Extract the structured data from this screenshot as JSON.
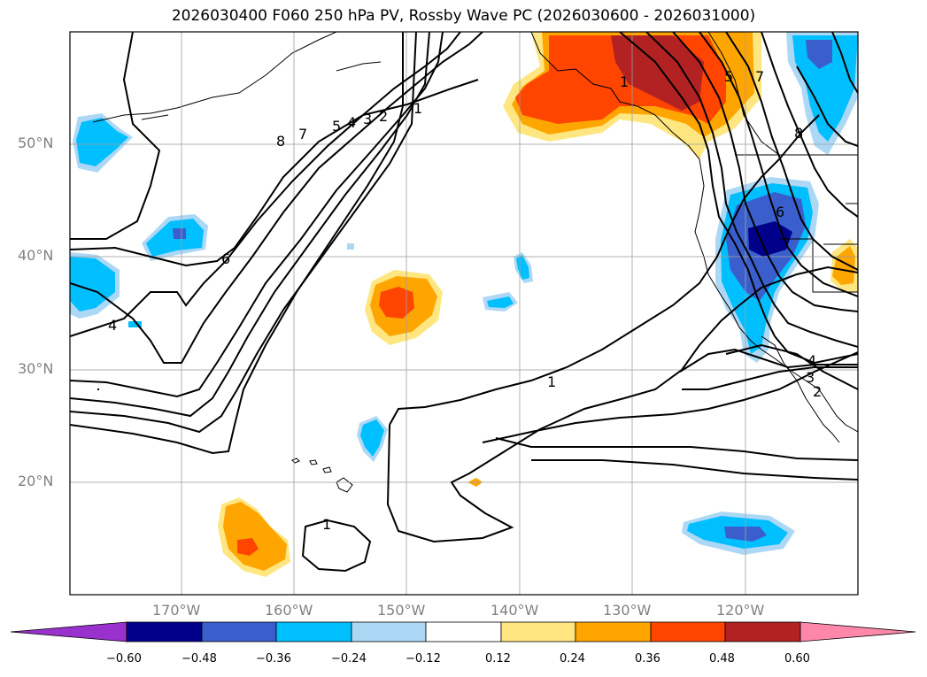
{
  "title": "2026030400 F060 250 hPa PV, Rossby Wave PC (2026030600 - 2026031000)",
  "lat_labels": [
    "50°N",
    "40°N",
    "30°N",
    "20°N"
  ],
  "lon_labels": [
    "170°W",
    "160°W",
    "150°W",
    "140°W",
    "130°W",
    "120°W"
  ],
  "contour_labels": [
    "8",
    "7",
    "5",
    "4",
    "3",
    "2",
    "1",
    "6",
    "4",
    "1",
    "1",
    "1",
    "5",
    "7",
    "8",
    "6",
    "4",
    "3",
    "2"
  ],
  "colorbar": {
    "ticks": [
      "−0.60",
      "−0.48",
      "−0.36",
      "−0.24",
      "−0.12",
      "0.12",
      "0.24",
      "0.36",
      "0.48",
      "0.60"
    ],
    "colors": [
      "#9932cc",
      "#00008b",
      "#3a5fcd",
      "#00bfff",
      "#add8f5",
      "#ffffff",
      "#ffe680",
      "#ffa500",
      "#ff4500",
      "#b22222",
      "#ff88aa"
    ]
  },
  "palette": {
    "neg_light": "#add8f5",
    "neg_mid": "#00bfff",
    "neg_strong": "#3a5fcd",
    "neg_max": "#00008b",
    "pos_light": "#ffe680",
    "pos_mid": "#ffa500",
    "pos_strong": "#ff4500",
    "pos_max": "#b22222"
  }
}
